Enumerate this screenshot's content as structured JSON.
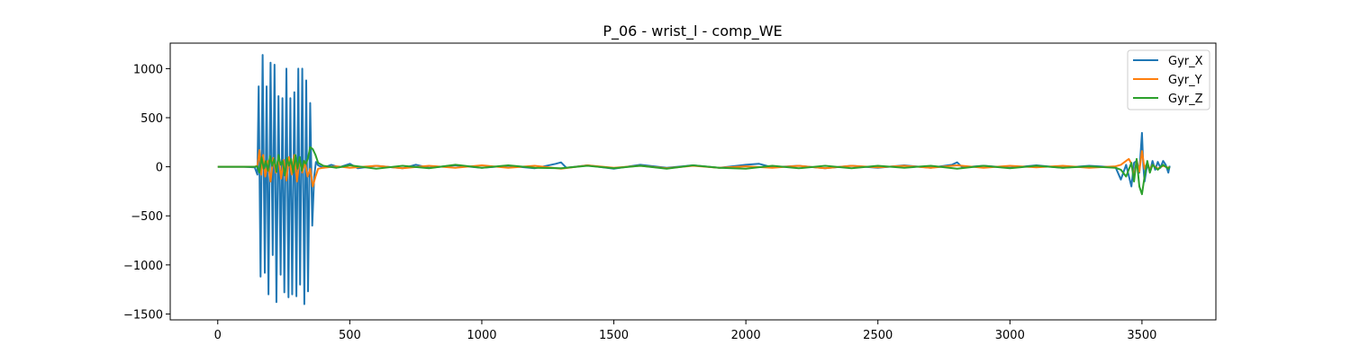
{
  "chart_data": {
    "type": "line",
    "title": "P_06 - wrist_l - comp_WE",
    "xlabel": "",
    "ylabel": "",
    "xlim": [
      -180,
      3780
    ],
    "ylim": [
      -1560,
      1260
    ],
    "xticks": [
      0,
      500,
      1000,
      1500,
      2000,
      2500,
      3000,
      3500
    ],
    "yticks": [
      1000,
      500,
      0,
      -500,
      -1000,
      -1500
    ],
    "xtick_labels": [
      "0",
      "500",
      "1000",
      "1500",
      "2000",
      "2500",
      "3000",
      "3500"
    ],
    "ytick_labels": [
      "1000",
      "500",
      "0",
      "−500",
      "−1000",
      "−1500"
    ],
    "grid": false,
    "legend_position": "top-right",
    "series": [
      {
        "name": "Gyr_X",
        "color": "#1f77b4",
        "x": [
          0,
          100,
          140,
          150,
          155,
          162,
          170,
          178,
          185,
          192,
          200,
          208,
          215,
          222,
          230,
          238,
          245,
          252,
          260,
          268,
          275,
          282,
          290,
          298,
          305,
          312,
          320,
          328,
          335,
          342,
          350,
          358,
          365,
          372,
          380,
          400,
          430,
          460,
          500,
          530,
          600,
          700,
          750,
          800,
          900,
          1000,
          1100,
          1200,
          1280,
          1300,
          1320,
          1400,
          1500,
          1600,
          1700,
          1800,
          1900,
          2000,
          2050,
          2100,
          2200,
          2300,
          2400,
          2500,
          2600,
          2700,
          2780,
          2800,
          2820,
          2900,
          3000,
          3100,
          3200,
          3300,
          3400,
          3420,
          3440,
          3460,
          3470,
          3480,
          3490,
          3500,
          3505,
          3510,
          3520,
          3530,
          3540,
          3550,
          3560,
          3570,
          3580,
          3590,
          3600,
          3605
        ],
        "y": [
          0,
          0,
          -5,
          -80,
          820,
          -1120,
          1140,
          -1080,
          820,
          -1300,
          1060,
          -900,
          1040,
          -1380,
          720,
          -1100,
          700,
          -1280,
          1000,
          -1330,
          700,
          -1300,
          760,
          -1320,
          1000,
          -1200,
          1000,
          -1400,
          880,
          -1270,
          650,
          -600,
          -100,
          50,
          15,
          -10,
          20,
          -5,
          30,
          -15,
          10,
          -15,
          20,
          -10,
          15,
          -10,
          10,
          -15,
          30,
          45,
          -10,
          15,
          -20,
          20,
          -10,
          15,
          -10,
          20,
          30,
          -5,
          10,
          -15,
          10,
          -10,
          15,
          -10,
          20,
          45,
          -5,
          10,
          -10,
          15,
          -10,
          10,
          -5,
          -130,
          20,
          -200,
          40,
          60,
          -60,
          345,
          10,
          -150,
          30,
          -50,
          60,
          -30,
          50,
          -10,
          60,
          20,
          -60,
          10
        ]
      },
      {
        "name": "Gyr_Y",
        "color": "#ff7f0e",
        "x": [
          0,
          100,
          140,
          150,
          158,
          165,
          172,
          180,
          190,
          200,
          210,
          220,
          230,
          240,
          250,
          260,
          270,
          280,
          290,
          300,
          310,
          320,
          330,
          340,
          350,
          360,
          370,
          380,
          400,
          450,
          500,
          600,
          700,
          800,
          900,
          1000,
          1100,
          1200,
          1300,
          1400,
          1500,
          1600,
          1700,
          1800,
          1900,
          2000,
          2100,
          2200,
          2300,
          2400,
          2500,
          2600,
          2700,
          2800,
          2900,
          3000,
          3100,
          3200,
          3300,
          3400,
          3420,
          3440,
          3450,
          3460,
          3470,
          3480,
          3490,
          3500,
          3510,
          3520,
          3530,
          3540,
          3560,
          3580,
          3600,
          3605
        ],
        "y": [
          0,
          0,
          0,
          10,
          170,
          -80,
          120,
          -100,
          60,
          -150,
          90,
          -60,
          110,
          -120,
          70,
          -140,
          100,
          -80,
          120,
          -150,
          80,
          -60,
          50,
          -100,
          -20,
          -200,
          -100,
          -20,
          -10,
          5,
          -10,
          10,
          -15,
          10,
          -10,
          15,
          -10,
          10,
          -20,
          15,
          -10,
          10,
          -15,
          10,
          -10,
          5,
          -10,
          10,
          -15,
          10,
          -5,
          10,
          -10,
          15,
          -10,
          10,
          -5,
          10,
          -10,
          5,
          20,
          60,
          80,
          30,
          -100,
          70,
          -50,
          160,
          -20,
          40,
          -30,
          20,
          -20,
          10,
          -10,
          0
        ]
      },
      {
        "name": "Gyr_Z",
        "color": "#2ca02c",
        "x": [
          0,
          100,
          140,
          150,
          158,
          166,
          174,
          182,
          190,
          198,
          206,
          214,
          222,
          230,
          238,
          246,
          254,
          262,
          270,
          278,
          286,
          294,
          302,
          310,
          318,
          326,
          334,
          342,
          350,
          360,
          370,
          380,
          400,
          450,
          500,
          600,
          700,
          800,
          900,
          1000,
          1100,
          1200,
          1300,
          1400,
          1500,
          1600,
          1700,
          1800,
          1900,
          2000,
          2100,
          2200,
          2300,
          2400,
          2500,
          2600,
          2700,
          2800,
          2900,
          3000,
          3100,
          3200,
          3300,
          3400,
          3420,
          3440,
          3460,
          3470,
          3480,
          3490,
          3500,
          3510,
          3520,
          3530,
          3540,
          3560,
          3580,
          3600,
          3605
        ],
        "y": [
          0,
          0,
          0,
          5,
          -60,
          100,
          -20,
          60,
          -40,
          110,
          10,
          80,
          -50,
          120,
          20,
          60,
          -90,
          90,
          10,
          80,
          -60,
          120,
          -20,
          100,
          -40,
          60,
          30,
          90,
          200,
          180,
          120,
          40,
          10,
          -10,
          15,
          -20,
          10,
          -15,
          20,
          -10,
          15,
          -10,
          -15,
          10,
          -15,
          10,
          -20,
          15,
          -10,
          -20,
          10,
          -15,
          10,
          -15,
          10,
          -10,
          10,
          -20,
          10,
          -15,
          10,
          -10,
          5,
          -10,
          -30,
          -100,
          40,
          -150,
          80,
          -200,
          -280,
          -100,
          60,
          -60,
          20,
          -30,
          20,
          -20,
          0
        ]
      }
    ]
  }
}
